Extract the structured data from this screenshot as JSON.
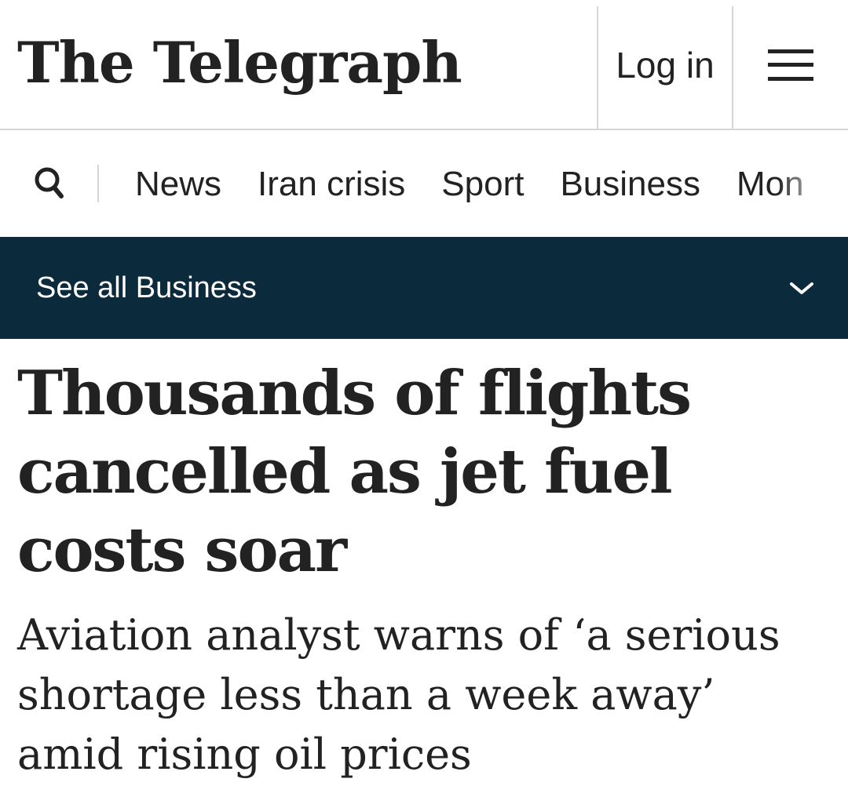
{
  "header": {
    "logo_text": "The Telegraph",
    "login_label": "Log in",
    "menu_icon": "hamburger-menu-icon"
  },
  "nav": {
    "search_icon": "search-icon",
    "items": [
      "News",
      "Iran crisis",
      "Sport",
      "Business",
      "Mon"
    ]
  },
  "section_bar": {
    "label": "See all Business",
    "icon": "chevron-down-icon",
    "background_color": "#0b2a3c"
  },
  "article": {
    "headline": "Thousands of flights cancelled as jet fuel costs soar",
    "standfirst": "Aviation analyst warns of ‘a serious shortage less than a week away’ amid rising oil prices"
  }
}
